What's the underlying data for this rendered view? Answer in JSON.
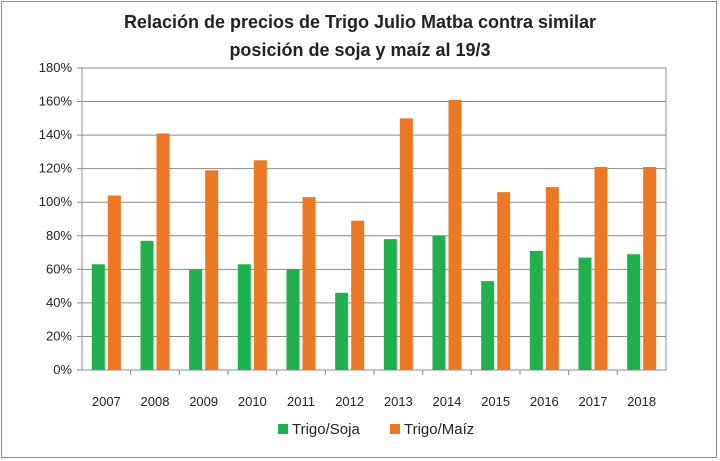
{
  "chart_data": {
    "type": "bar",
    "title_line1": "Relación de precios de Trigo Julio Matba contra similar",
    "title_line2": "posición de soja y maíz al 19/3",
    "categories": [
      "2007",
      "2008",
      "2009",
      "2010",
      "2011",
      "2012",
      "2013",
      "2014",
      "2015",
      "2016",
      "2017",
      "2018"
    ],
    "series": [
      {
        "name": "Trigo/Soja",
        "color": "#1fb14d",
        "values": [
          63,
          77,
          60,
          63,
          60,
          46,
          78,
          80,
          53,
          71,
          67,
          69
        ]
      },
      {
        "name": "Trigo/Maíz",
        "color": "#ee7722",
        "values": [
          104,
          141,
          119,
          125,
          103,
          89,
          150,
          161,
          106,
          109,
          121,
          121
        ]
      }
    ],
    "y_ticks": [
      "0%",
      "20%",
      "40%",
      "60%",
      "80%",
      "100%",
      "120%",
      "140%",
      "160%",
      "180%"
    ],
    "ylim": [
      0,
      180
    ],
    "grid": true,
    "legend_position": "bottom"
  }
}
